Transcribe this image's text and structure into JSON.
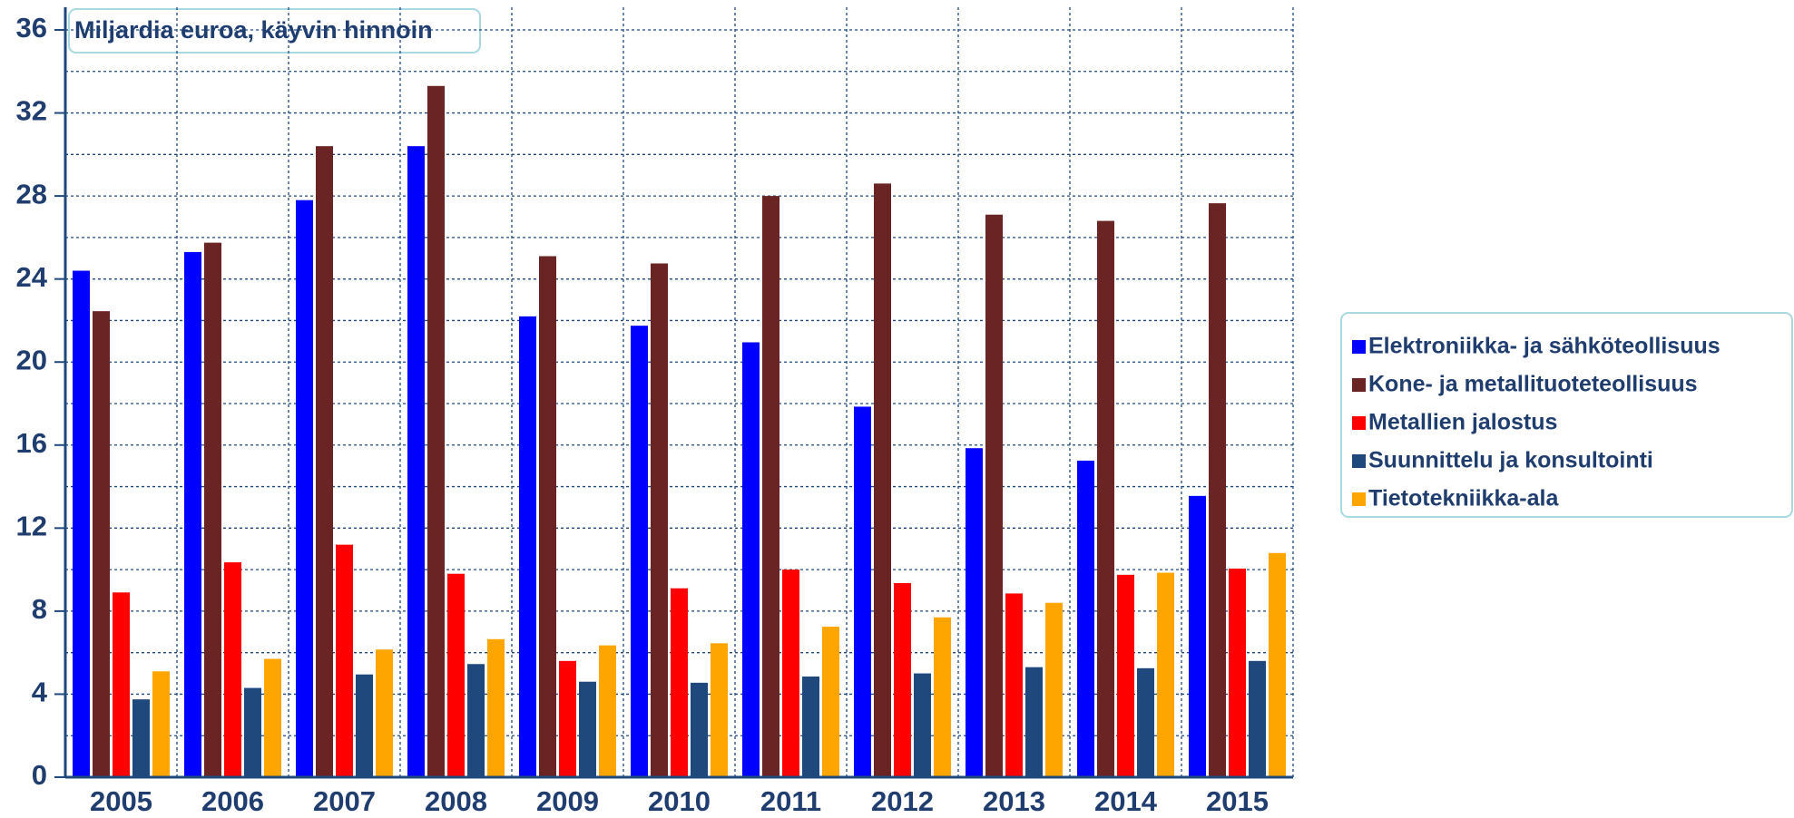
{
  "chart_data": {
    "type": "bar",
    "title": "Miljardia euroa, käyvin hinnoin",
    "categories": [
      "2005",
      "2006",
      "2007",
      "2008",
      "2009",
      "2010",
      "2011",
      "2012",
      "2013",
      "2014",
      "2015"
    ],
    "series": [
      {
        "name": "Elektroniikka- ja sähköteollisuus",
        "color": "#0000ff",
        "values": [
          24.4,
          25.3,
          27.8,
          30.4,
          22.2,
          21.75,
          20.95,
          17.85,
          15.85,
          15.25,
          13.55
        ]
      },
      {
        "name": "Kone- ja metallituoteteollisuus",
        "color": "#6b2424",
        "values": [
          22.45,
          25.75,
          30.4,
          33.3,
          25.1,
          24.75,
          28.0,
          28.6,
          27.1,
          26.8,
          27.65
        ]
      },
      {
        "name": "Metallien jalostus",
        "color": "#ff0000",
        "values": [
          8.9,
          10.35,
          11.2,
          9.8,
          5.6,
          9.1,
          10.0,
          9.35,
          8.85,
          9.75,
          10.05
        ]
      },
      {
        "name": "Suunnittelu ja konsultointi",
        "color": "#1f497d",
        "values": [
          3.75,
          4.3,
          4.95,
          5.45,
          4.6,
          4.55,
          4.85,
          5.0,
          5.3,
          5.25,
          5.6
        ]
      },
      {
        "name": "Tietotekniikka-ala",
        "color": "#ffa500",
        "values": [
          5.1,
          5.7,
          6.15,
          6.65,
          6.35,
          6.45,
          7.25,
          7.7,
          8.4,
          9.85,
          10.8
        ]
      }
    ],
    "ylim": [
      0,
      36
    ],
    "yticks": [
      0,
      4,
      8,
      12,
      16,
      20,
      24,
      28,
      32,
      36
    ],
    "yminor": [
      2,
      6,
      10,
      14,
      18,
      22,
      26,
      30,
      34
    ],
    "grid": true,
    "legend": "right"
  }
}
